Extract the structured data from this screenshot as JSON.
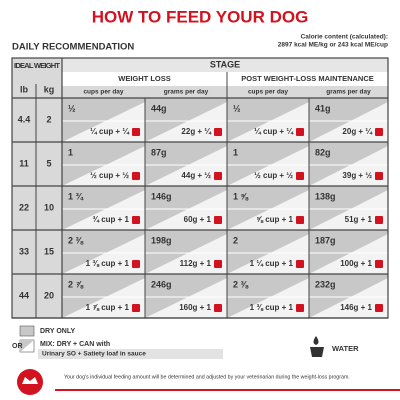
{
  "header": {
    "title": "HOW TO FEED YOUR DOG",
    "subtitle": "DAILY RECOMMENDATION",
    "calorie_label": "Calorie content (calculated):",
    "calorie_value": "2897 kcal ME/kg or 243 kcal ME/cup"
  },
  "table": {
    "weight_header": "IDEAL WEIGHT",
    "lb": "lb",
    "kg": "kg",
    "stage": "STAGE",
    "sections": [
      "WEIGHT LOSS",
      "POST WEIGHT-LOSS MAINTENANCE"
    ],
    "subheaders": [
      "cups per day",
      "grams per day",
      "cups per day",
      "grams per day"
    ],
    "rows": [
      {
        "lb": "4.4",
        "kg": "2",
        "cells": [
          {
            "dry": "½",
            "mix": "¼ cup + ¼"
          },
          {
            "dry": "44g",
            "mix": "22g + ¼"
          },
          {
            "dry": "½",
            "mix": "¼ cup + ¼"
          },
          {
            "dry": "41g",
            "mix": "20g + ¼"
          }
        ]
      },
      {
        "lb": "11",
        "kg": "5",
        "cells": [
          {
            "dry": "1",
            "mix": "½ cup + ½"
          },
          {
            "dry": "87g",
            "mix": "44g + ½"
          },
          {
            "dry": "1",
            "mix": "½ cup + ½"
          },
          {
            "dry": "82g",
            "mix": "39g + ½"
          }
        ]
      },
      {
        "lb": "22",
        "kg": "10",
        "cells": [
          {
            "dry": "1 ¾",
            "mix": "¾ cup + 1"
          },
          {
            "dry": "146g",
            "mix": "60g + 1"
          },
          {
            "dry": "1 ⅝",
            "mix": "⅝ cup + 1"
          },
          {
            "dry": "138g",
            "mix": "51g + 1"
          }
        ]
      },
      {
        "lb": "33",
        "kg": "15",
        "cells": [
          {
            "dry": "2 ⅜",
            "mix": "1 ⅜ cup + 1"
          },
          {
            "dry": "198g",
            "mix": "112g + 1"
          },
          {
            "dry": "2",
            "mix": "1 ¼ cup + 1"
          },
          {
            "dry": "187g",
            "mix": "100g + 1"
          }
        ]
      },
      {
        "lb": "44",
        "kg": "20",
        "cells": [
          {
            "dry": "2 ⅞",
            "mix": "1 ⅞ cup + 1"
          },
          {
            "dry": "246g",
            "mix": "160g + 1"
          },
          {
            "dry": "2 ⅜",
            "mix": "1 ⅜ cup + 1"
          },
          {
            "dry": "232g",
            "mix": "146g + 1"
          }
        ]
      }
    ]
  },
  "legend": {
    "dry_only": "DRY ONLY",
    "or": "OR",
    "mix": "MIX: DRY + CAN with",
    "product": "Urinary SO + Satiety loaf in sauce",
    "water": "WATER"
  },
  "footer": {
    "note": "Your dog's individual feeding amount will be determined and adjusted by your veterinarian during the weight-loss program."
  }
}
